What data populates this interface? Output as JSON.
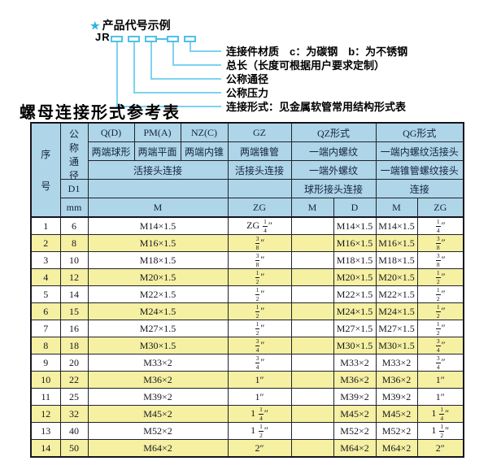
{
  "diagram": {
    "star_icon": "★",
    "title": "产品代号示例",
    "code_prefix": "JR",
    "code_separator": "-",
    "labels": [
      "连接件材质　c：为碳钢　b：为不锈钢",
      "总长（长度可根据用户要求定制）",
      "公称通径",
      "公称压力",
      "连接形式：见金属软管常用结构形式表"
    ]
  },
  "table": {
    "title": "螺母连接形式参考表",
    "header": {
      "col_seq": "序号",
      "col_dn": "公称通径",
      "d1": "D1",
      "mm": "mm",
      "q": "Q(D)",
      "pm": "PM(A)",
      "nz": "NZ(C)",
      "gz": "GZ",
      "qz": "QZ形式",
      "qg": "QG形式",
      "q_desc": "两端球形",
      "pm_desc": "两端平面",
      "nz_desc": "两端内锥",
      "gz_desc": "两端锥管",
      "qz_desc1": "一端内螺纹",
      "qg_desc1": "一端内螺纹活接头",
      "union_conn": "活接头连接",
      "gz_conn": "活接头连接",
      "qz_desc2": "一端外螺纹",
      "qg_desc2": "一端锥管螺纹接头",
      "qz_conn": "球形接头连接",
      "qg_conn": "连接",
      "m1": "M",
      "zg1": "ZG",
      "m2": "M",
      "d2": "D",
      "m3": "M",
      "zg3": "ZG"
    },
    "rows": [
      {
        "seq": "1",
        "dn": "6",
        "m": "M14×1.5",
        "zg": "ZG 1/4″",
        "qz_m": "",
        "qz_d": "M14×1.5",
        "qg_m": "M14×1.5",
        "qg_zg": "1/4″"
      },
      {
        "seq": "2",
        "dn": "8",
        "m": "M16×1.5",
        "zg": "3/8″",
        "qz_m": "",
        "qz_d": "M16×1.5",
        "qg_m": "M16×1.5",
        "qg_zg": "3/8″"
      },
      {
        "seq": "3",
        "dn": "10",
        "m": "M18×1.5",
        "zg": "3/8″",
        "qz_m": "",
        "qz_d": "M18×1.5",
        "qg_m": "M18×1.5",
        "qg_zg": "3/8″"
      },
      {
        "seq": "4",
        "dn": "12",
        "m": "M20×1.5",
        "zg": "1/2″",
        "qz_m": "",
        "qz_d": "M20×1.5",
        "qg_m": "M20×1.5",
        "qg_zg": "1/2″"
      },
      {
        "seq": "5",
        "dn": "14",
        "m": "M22×1.5",
        "zg": "1/2″",
        "qz_m": "",
        "qz_d": "M22×1.5",
        "qg_m": "M22×1.5",
        "qg_zg": "1/2″"
      },
      {
        "seq": "6",
        "dn": "15",
        "m": "M24×1.5",
        "zg": "1/2″",
        "qz_m": "",
        "qz_d": "M24×1.5",
        "qg_m": "M24×1.5",
        "qg_zg": "1/2″"
      },
      {
        "seq": "7",
        "dn": "16",
        "m": "M27×1.5",
        "zg": "1/2″",
        "qz_m": "",
        "qz_d": "M27×1.5",
        "qg_m": "M27×1.5",
        "qg_zg": "1/2″"
      },
      {
        "seq": "8",
        "dn": "18",
        "m": "M30×1.5",
        "zg": "3/4″",
        "qz_m": "",
        "qz_d": "M30×1.5",
        "qg_m": "M30×1.5",
        "qg_zg": "3/4″"
      },
      {
        "seq": "9",
        "dn": "20",
        "m": "M33×2",
        "zg": "3/4″",
        "qz_m": "",
        "qz_d": "M33×2",
        "qg_m": "M33×2",
        "qg_zg": "3/4″"
      },
      {
        "seq": "10",
        "dn": "22",
        "m": "M36×2",
        "zg": "1″",
        "qz_m": "",
        "qz_d": "M36×2",
        "qg_m": "M36×2",
        "qg_zg": "1″"
      },
      {
        "seq": "11",
        "dn": "25",
        "m": "M39×2",
        "zg": "1″",
        "qz_m": "",
        "qz_d": "M39×2",
        "qg_m": "M39×2",
        "qg_zg": "1″"
      },
      {
        "seq": "12",
        "dn": "32",
        "m": "M45×2",
        "zg": "1 1/4″",
        "qz_m": "",
        "qz_d": "M45×2",
        "qg_m": "M45×2",
        "qg_zg": "1 1/4″"
      },
      {
        "seq": "13",
        "dn": "40",
        "m": "M52×2",
        "zg": "1 1/2″",
        "qz_m": "",
        "qz_d": "M52×2",
        "qg_m": "M52×2",
        "qg_zg": "1 1/2″"
      },
      {
        "seq": "14",
        "dn": "50",
        "m": "M64×2",
        "zg": "2″",
        "qz_m": "",
        "qz_d": "M64×2",
        "qg_m": "M64×2",
        "qg_zg": "2″"
      }
    ]
  },
  "colors": {
    "header_bg": "#aed5e8",
    "row_alt_bg": "#f5f0a2",
    "diagram_accent": "#4fc0ea",
    "border": "#20222c"
  }
}
